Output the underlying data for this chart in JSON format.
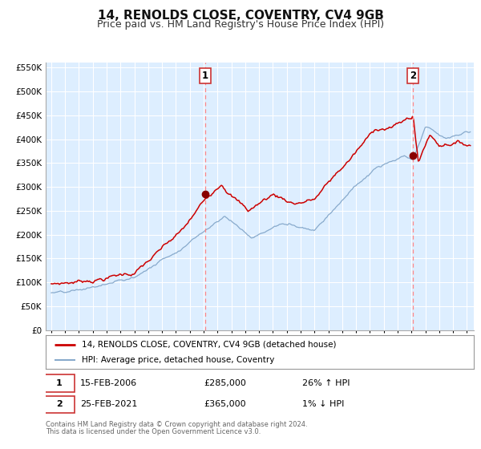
{
  "title": "14, RENOLDS CLOSE, COVENTRY, CV4 9GB",
  "subtitle": "Price paid vs. HM Land Registry's House Price Index (HPI)",
  "title_fontsize": 11,
  "subtitle_fontsize": 9,
  "legend_line1": "14, RENOLDS CLOSE, COVENTRY, CV4 9GB (detached house)",
  "legend_line2": "HPI: Average price, detached house, Coventry",
  "footer1": "Contains HM Land Registry data © Crown copyright and database right 2024.",
  "footer2": "This data is licensed under the Open Government Licence v3.0.",
  "annotation1_label": "1",
  "annotation1_date": "15-FEB-2006",
  "annotation1_price": "£285,000",
  "annotation1_hpi": "26% ↑ HPI",
  "annotation2_label": "2",
  "annotation2_date": "25-FEB-2021",
  "annotation2_price": "£365,000",
  "annotation2_hpi": "1% ↓ HPI",
  "vline1_x": 2006.12,
  "vline2_x": 2021.12,
  "marker1_x": 2006.12,
  "marker1_y": 285000,
  "marker2_x": 2021.12,
  "marker2_y": 365000,
  "ylim": [
    0,
    560000
  ],
  "xlim_start": 1994.6,
  "xlim_end": 2025.5,
  "background_color": "#ddeeff",
  "grid_color": "#ffffff",
  "red_line_color": "#cc0000",
  "blue_line_color": "#88aacc",
  "marker_color": "#880000",
  "vline_color": "#ff8888",
  "box_edge_color": "#cc3333"
}
